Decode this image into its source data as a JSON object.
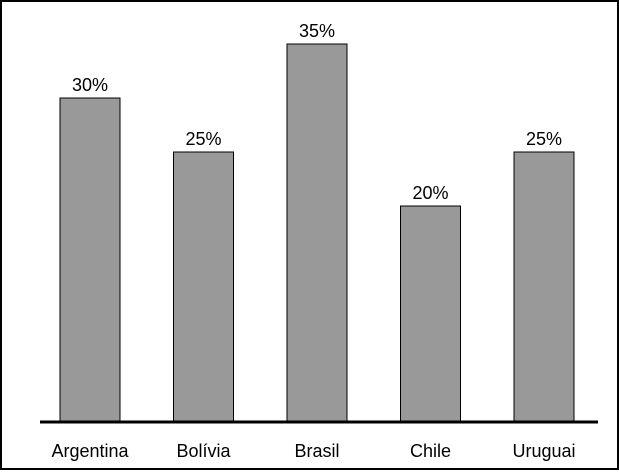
{
  "chart_data": {
    "type": "bar",
    "categories": [
      "Argentina",
      "Bolívia",
      "Brasil",
      "Chile",
      "Uruguai"
    ],
    "values": [
      30,
      25,
      35,
      20,
      25
    ],
    "data_labels": [
      "30%",
      "25%",
      "35%",
      "20%",
      "25%"
    ],
    "title": "",
    "xlabel": "",
    "ylabel": "",
    "ylim": [
      0,
      35
    ],
    "grid": false,
    "legend": "none",
    "bar_color": "#999999",
    "edge_color": "#000000"
  }
}
